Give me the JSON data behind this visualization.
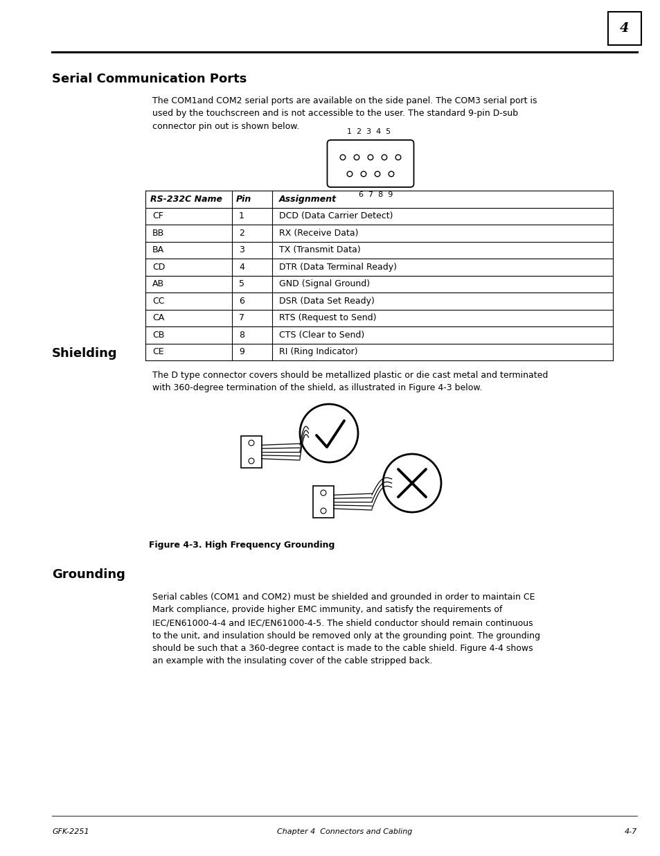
{
  "page_number": "4",
  "page_width": 9.54,
  "page_height": 12.35,
  "bg_color": "#ffffff",
  "title": "Serial Communication Ports",
  "intro_text": "The COM1and COM2 serial ports are available on the side panel. The COM3 serial port is\nused by the touchscreen and is not accessible to the user. The standard 9-pin D-sub\nconnector pin out is shown below.",
  "connector_top_labels": "1  2  3  4  5",
  "connector_bot_labels": "6  7  8  9",
  "table_headers": [
    "RS-232C Name",
    "Pin",
    "Assignment"
  ],
  "table_rows": [
    [
      "CF",
      "1",
      "DCD (Data Carrier Detect)"
    ],
    [
      "BB",
      "2",
      "RX (Receive Data)"
    ],
    [
      "BA",
      "3",
      "TX (Transmit Data)"
    ],
    [
      "CD",
      "4",
      "DTR (Data Terminal Ready)"
    ],
    [
      "AB",
      "5",
      "GND (Signal Ground)"
    ],
    [
      "CC",
      "6",
      "DSR (Data Set Ready)"
    ],
    [
      "CA",
      "7",
      "RTS (Request to Send)"
    ],
    [
      "CB",
      "8",
      "CTS (Clear to Send)"
    ],
    [
      "CE",
      "9",
      "RI (Ring Indicator)"
    ]
  ],
  "shielding_title": "Shielding",
  "shielding_text": "The D type connector covers should be metallized plastic or die cast metal and terminated\nwith 360-degree termination of the shield, as illustrated in Figure 4-3 below.",
  "figure_caption": "Figure 4-3. High Frequency Grounding",
  "grounding_title": "Grounding",
  "grounding_text": "Serial cables (COM1 and COM2) must be shielded and grounded in order to maintain CE\nMark compliance, provide higher EMC immunity, and satisfy the requirements of\nIEC/EN61000-4-4 and IEC/EN61000-4-5. The shield conductor should remain continuous\nto the unit, and insulation should be removed only at the grounding point. The grounding\nshould be such that a 360-degree contact is made to the cable shield. Figure 4-4 shows\nan example with the insulating cover of the cable stripped back.",
  "footer_left": "GFK-2251",
  "footer_center": "Chapter 4  Connectors and Cabling",
  "footer_right": "4-7"
}
